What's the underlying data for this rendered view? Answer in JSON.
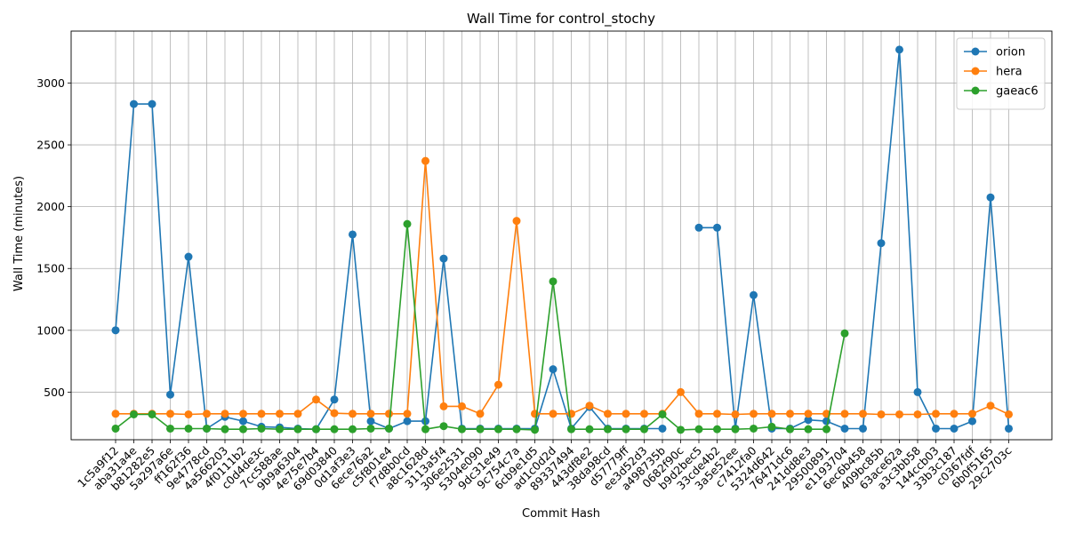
{
  "chart_data": {
    "type": "line",
    "title": "Wall Time for control_stochy",
    "xlabel": "Commit Hash",
    "ylabel": "Wall Time (minutes)",
    "ylim": [
      115,
      3420
    ],
    "yticks": [
      500,
      1000,
      1500,
      2000,
      2500,
      3000
    ],
    "grid": true,
    "legend_position": "top-right",
    "categories": [
      "1c5a9f12",
      "aba31a4e",
      "b81282e5",
      "5a297a6e",
      "ff162f36",
      "9e4778cd",
      "4a566203",
      "4f0111b2",
      "c0d4de3c",
      "7cc588ae",
      "9b9a6304",
      "4e75e7b4",
      "69d03840",
      "0d1af3e3",
      "6ece76a2",
      "c5f801e4",
      "f7d8b0cd",
      "a8c1628d",
      "3113a5f4",
      "306e2531",
      "5304e090",
      "9dc31e49",
      "9c754c7a",
      "6cb9e1d5",
      "ad1c0d2d",
      "89337494",
      "443df8e2",
      "38da98cd",
      "d57779ff",
      "ee3d52d3",
      "a498735b",
      "0682f90c",
      "b9d2bec5",
      "33cde4b2",
      "3a5e52ee",
      "c7412fa0",
      "5324d642",
      "76471dc6",
      "241dd8e3",
      "29500891",
      "e1193704",
      "6ec6b458",
      "409bc85b",
      "63ace62a",
      "a3c3bb58",
      "144ccb03",
      "33b3c187",
      "c0367fdf",
      "6b0f5165",
      "29c2703c"
    ],
    "series": [
      {
        "name": "orion",
        "color": "#1f77b4",
        "values": [
          1000,
          2830,
          2830,
          480,
          1595,
          205,
          300,
          265,
          220,
          215,
          205,
          200,
          440,
          1775,
          265,
          205,
          265,
          265,
          1580,
          205,
          205,
          205,
          205,
          205,
          685,
          205,
          380,
          205,
          205,
          205,
          205,
          null,
          1830,
          1830,
          205,
          1285,
          205,
          205,
          275,
          265,
          205,
          205,
          1705,
          3270,
          500,
          205,
          205,
          265,
          2075,
          205
        ]
      },
      {
        "name": "hera",
        "color": "#ff7f0e",
        "values": [
          325,
          325,
          325,
          325,
          320,
          325,
          325,
          325,
          325,
          325,
          325,
          440,
          330,
          325,
          325,
          325,
          325,
          2370,
          385,
          385,
          325,
          560,
          1885,
          325,
          325,
          325,
          390,
          325,
          325,
          325,
          325,
          500,
          325,
          325,
          320,
          325,
          325,
          325,
          325,
          325,
          325,
          325,
          320,
          320,
          320,
          325,
          325,
          325,
          390,
          320
        ]
      },
      {
        "name": "gaeac6",
        "color": "#2ca02c",
        "values": [
          205,
          320,
          320,
          205,
          205,
          205,
          200,
          200,
          205,
          200,
          200,
          200,
          200,
          200,
          205,
          205,
          1860,
          200,
          225,
          200,
          200,
          200,
          200,
          195,
          1395,
          200,
          200,
          200,
          200,
          200,
          320,
          195,
          200,
          200,
          200,
          205,
          220,
          200,
          200,
          200,
          975,
          null,
          null,
          null,
          null,
          null,
          null,
          null,
          null,
          null
        ]
      }
    ]
  }
}
